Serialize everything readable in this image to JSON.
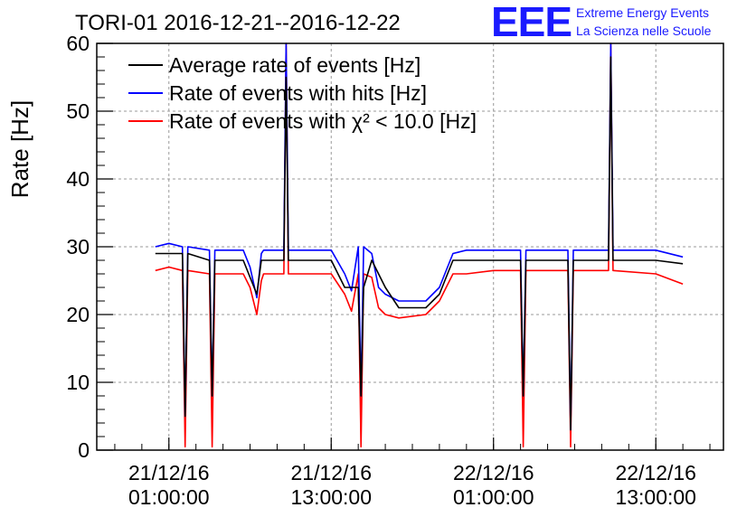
{
  "chart_data": {
    "type": "line",
    "title": "TORI-01 2016-12-21--2016-12-22",
    "ylabel": "Rate [Hz]",
    "xlabel": "",
    "ylim": [
      0,
      60
    ],
    "y_ticks": [
      0,
      10,
      20,
      30,
      40,
      50,
      60
    ],
    "x_unit": "time",
    "x_range": [
      "2016-12-20 19:40:00",
      "2016-12-22 18:00:00"
    ],
    "x_ticks": [
      {
        "t": "2016-12-21 01:00:00",
        "date": "21/12/16",
        "time": "01:00:00"
      },
      {
        "t": "2016-12-21 13:00:00",
        "date": "21/12/16",
        "time": "13:00:00"
      },
      {
        "t": "2016-12-22 01:00:00",
        "date": "22/12/16",
        "time": "01:00:00"
      },
      {
        "t": "2016-12-22 13:00:00",
        "date": "22/12/16",
        "time": "13:00:00"
      }
    ],
    "grid": true,
    "legend_position": "top-left",
    "series": [
      {
        "name": "Average rate of events [Hz]",
        "color": "#000000",
        "x": [
          "2016-12-21 00:00",
          "2016-12-21 02:00",
          "2016-12-21 02:12",
          "2016-12-21 02:24",
          "2016-12-21 04:00",
          "2016-12-21 04:12",
          "2016-12-21 04:24",
          "2016-12-21 06:30",
          "2016-12-21 07:30",
          "2016-12-21 07:50",
          "2016-12-21 09:30",
          "2016-12-21 09:40",
          "2016-12-21 09:50",
          "2016-12-21 13:00",
          "2016-12-21 14:00",
          "2016-12-21 15:00",
          "2016-12-21 15:12",
          "2016-12-21 15:24",
          "2016-12-21 16:00",
          "2016-12-21 17:00",
          "2016-12-21 18:00",
          "2016-12-21 20:00",
          "2016-12-21 21:00",
          "2016-12-21 22:00",
          "2016-12-22 01:00",
          "2016-12-22 03:00",
          "2016-12-22 03:12",
          "2016-12-22 03:24",
          "2016-12-22 06:30",
          "2016-12-22 06:42",
          "2016-12-22 06:54",
          "2016-12-22 09:30",
          "2016-12-22 09:40",
          "2016-12-22 09:50",
          "2016-12-22 13:00",
          "2016-12-22 15:00"
        ],
        "y": [
          29,
          29,
          5,
          29,
          28,
          8,
          28,
          28,
          23,
          28,
          28,
          55,
          28,
          28,
          24,
          24,
          8,
          24,
          28,
          24,
          21,
          21,
          23,
          28,
          28,
          28,
          8,
          28,
          28,
          3,
          28,
          28,
          58,
          28,
          28,
          27.5
        ]
      },
      {
        "name": "Rate of events with hits [Hz]",
        "color": "#0000ff",
        "x": [
          "2016-12-21 00:00",
          "2016-12-21 01:00",
          "2016-12-21 02:00",
          "2016-12-21 02:12",
          "2016-12-21 02:24",
          "2016-12-21 04:00",
          "2016-12-21 04:12",
          "2016-12-21 04:24",
          "2016-12-21 06:30",
          "2016-12-21 07:00",
          "2016-12-21 07:30",
          "2016-12-21 07:50",
          "2016-12-21 08:00",
          "2016-12-21 09:30",
          "2016-12-21 09:40",
          "2016-12-21 09:50",
          "2016-12-21 13:00",
          "2016-12-21 14:00",
          "2016-12-21 14:30",
          "2016-12-21 15:00",
          "2016-12-21 15:12",
          "2016-12-21 15:24",
          "2016-12-21 16:00",
          "2016-12-21 16:30",
          "2016-12-21 17:00",
          "2016-12-21 18:00",
          "2016-12-21 20:00",
          "2016-12-21 21:00",
          "2016-12-21 22:00",
          "2016-12-21 23:00",
          "2016-12-22 01:00",
          "2016-12-22 03:00",
          "2016-12-22 03:12",
          "2016-12-22 03:24",
          "2016-12-22 06:30",
          "2016-12-22 06:42",
          "2016-12-22 06:54",
          "2016-12-22 09:30",
          "2016-12-22 09:40",
          "2016-12-22 09:50",
          "2016-12-22 13:00",
          "2016-12-22 15:00"
        ],
        "y": [
          30,
          30.5,
          30,
          5,
          30,
          29.5,
          8,
          29.5,
          29.5,
          27,
          22.5,
          29,
          29.5,
          29.5,
          60,
          29.5,
          29.5,
          26,
          23.5,
          30,
          8,
          30,
          29,
          24,
          23,
          22,
          22,
          24,
          29,
          29.5,
          29.5,
          29.5,
          8,
          29.5,
          29.5,
          3,
          29.5,
          29.5,
          60,
          29.5,
          29.5,
          28.5
        ]
      },
      {
        "name": "Rate of events with χ² < 10.0 [Hz]",
        "color": "#ff0000",
        "x": [
          "2016-12-21 00:00",
          "2016-12-21 01:00",
          "2016-12-21 02:00",
          "2016-12-21 02:12",
          "2016-12-21 02:24",
          "2016-12-21 04:00",
          "2016-12-21 04:12",
          "2016-12-21 04:24",
          "2016-12-21 06:30",
          "2016-12-21 07:00",
          "2016-12-21 07:30",
          "2016-12-21 07:50",
          "2016-12-21 08:00",
          "2016-12-21 09:30",
          "2016-12-21 09:40",
          "2016-12-21 09:50",
          "2016-12-21 13:00",
          "2016-12-21 14:00",
          "2016-12-21 14:30",
          "2016-12-21 15:00",
          "2016-12-21 15:12",
          "2016-12-21 15:24",
          "2016-12-21 16:00",
          "2016-12-21 16:30",
          "2016-12-21 17:00",
          "2016-12-21 18:00",
          "2016-12-21 20:00",
          "2016-12-21 21:00",
          "2016-12-21 22:00",
          "2016-12-21 23:00",
          "2016-12-22 01:00",
          "2016-12-22 03:00",
          "2016-12-22 03:12",
          "2016-12-22 03:24",
          "2016-12-22 06:30",
          "2016-12-22 06:42",
          "2016-12-22 06:54",
          "2016-12-22 09:30",
          "2016-12-22 09:40",
          "2016-12-22 09:50",
          "2016-12-22 13:00",
          "2016-12-22 15:00"
        ],
        "y": [
          26.5,
          27,
          26.5,
          0.5,
          26.5,
          26,
          0.5,
          26,
          26,
          24,
          20,
          25,
          26,
          26,
          60,
          26,
          26,
          23,
          20.5,
          26,
          0.5,
          26,
          25.5,
          21,
          20,
          19.5,
          20,
          22,
          26,
          26,
          26.5,
          26.5,
          0.5,
          26.5,
          26.5,
          0.5,
          26.5,
          26.5,
          60,
          26.5,
          26,
          24.5
        ]
      }
    ]
  },
  "logo": {
    "mark": "EEE",
    "line1": "Extreme Energy Events",
    "line2": "La Scienza nelle Scuole"
  }
}
